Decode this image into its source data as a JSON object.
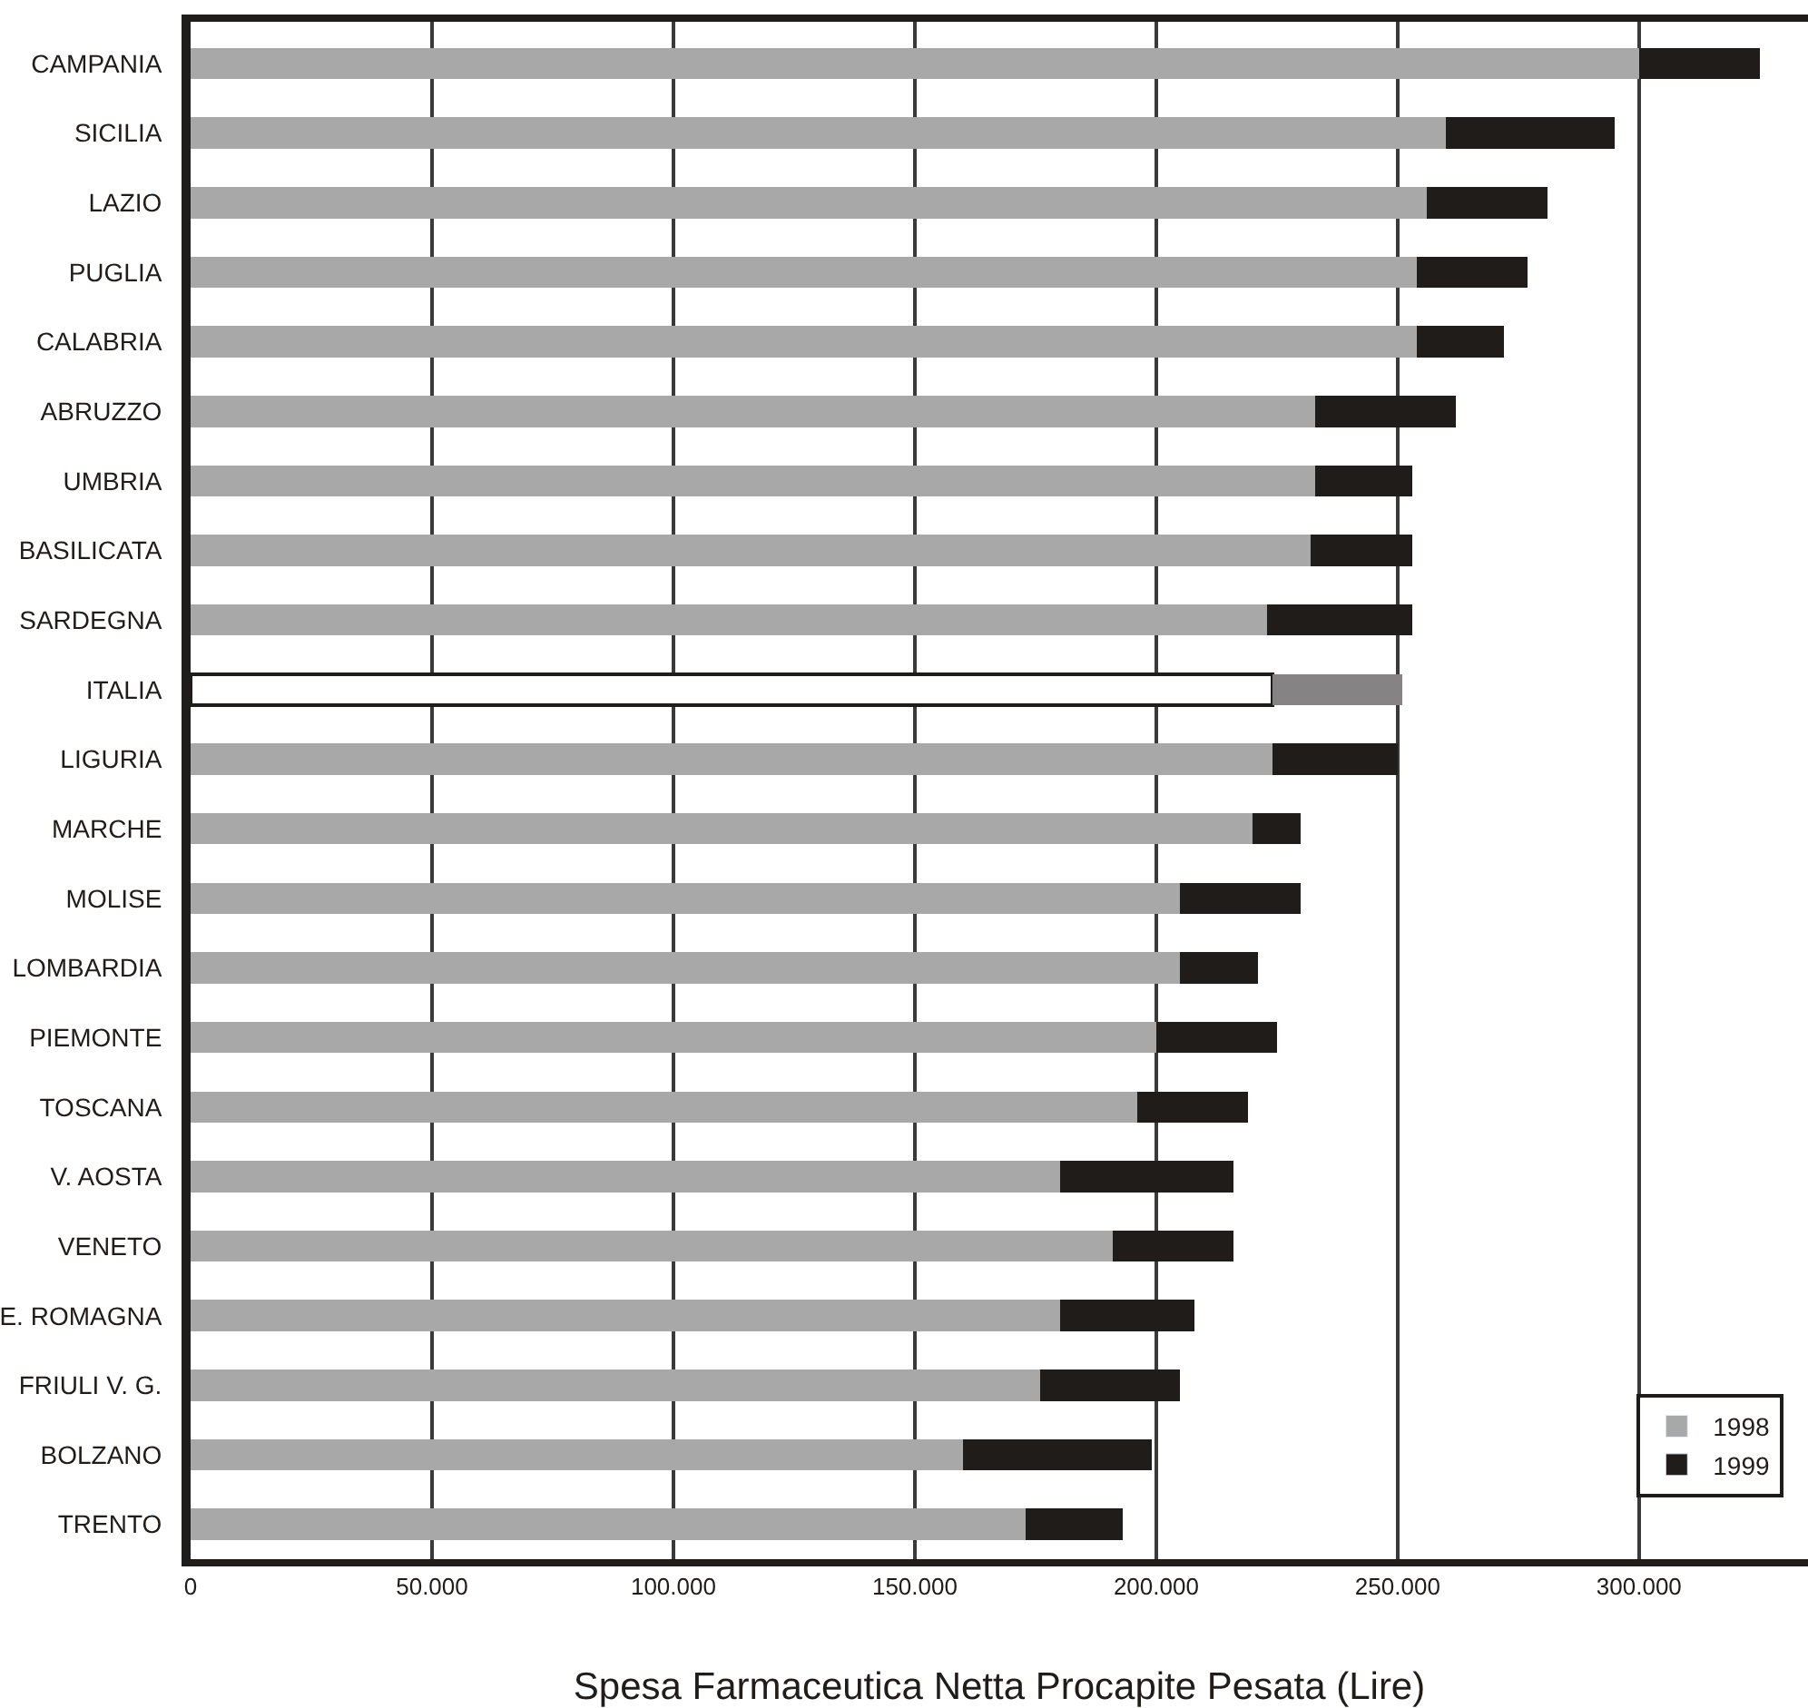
{
  "chart_data": {
    "type": "bar",
    "orientation": "horizontal",
    "stacked": true,
    "xlabel": "Spesa Farmaceutica Netta Procapite Pesata (Lire)",
    "categories": [
      "CAMPANIA",
      "SICILIA",
      "LAZIO",
      "PUGLIA",
      "CALABRIA",
      "ABRUZZO",
      "UMBRIA",
      "BASILICATA",
      "SARDEGNA",
      "ITALIA",
      "LIGURIA",
      "MARCHE",
      "MOLISE",
      "LOMBARDIA",
      "PIEMONTE",
      "TOSCANA",
      "V. AOSTA",
      "VENETO",
      "E. ROMAGNA",
      "FRIULI V. G.",
      "BOLZANO",
      "TRENTO"
    ],
    "series": [
      {
        "name": "1998",
        "color": "#a8a8a8",
        "colors": [
          "#a8a8a8",
          "#a8a8a8",
          "#a8a8a8",
          "#a8a8a8",
          "#a8a8a8",
          "#a8a8a8",
          "#a8a8a8",
          "#a8a8a8",
          "#a8a8a8",
          "#ffffff",
          "#a8a8a8",
          "#a8a8a8",
          "#a8a8a8",
          "#a8a8a8",
          "#a8a8a8",
          "#a8a8a8",
          "#a8a8a8",
          "#a8a8a8",
          "#a8a8a8",
          "#a8a8a8",
          "#a8a8a8",
          "#a8a8a8"
        ],
        "values": [
          300000,
          260000,
          256000,
          254000,
          254000,
          233000,
          233000,
          232000,
          223000,
          224000,
          224000,
          220000,
          205000,
          205000,
          200000,
          196000,
          180000,
          191000,
          180000,
          176000,
          160000,
          173000
        ]
      },
      {
        "name": "1999",
        "color": "#201c1a",
        "colors": [
          "#201c1a",
          "#201c1a",
          "#201c1a",
          "#201c1a",
          "#201c1a",
          "#201c1a",
          "#201c1a",
          "#201c1a",
          "#201c1a",
          "#858383",
          "#201c1a",
          "#201c1a",
          "#201c1a",
          "#201c1a",
          "#201c1a",
          "#201c1a",
          "#201c1a",
          "#201c1a",
          "#201c1a",
          "#201c1a",
          "#201c1a",
          "#201c1a"
        ],
        "values": [
          25000,
          35000,
          25000,
          23000,
          18000,
          29000,
          20000,
          21000,
          30000,
          27000,
          26000,
          10000,
          25000,
          16000,
          25000,
          23000,
          36000,
          25000,
          28000,
          29000,
          39000,
          20000
        ]
      }
    ],
    "xlim": [
      0,
      335000
    ],
    "xticks": [
      0,
      {
        "value": 50000,
        "label": "50.000"
      },
      {
        "value": 100000,
        "label": "100.000"
      },
      {
        "value": 150000,
        "label": "150.000"
      },
      {
        "value": 200000,
        "label": "200.000"
      },
      {
        "value": 250000,
        "label": "250.000"
      },
      {
        "value": 300000,
        "label": "300.000"
      }
    ],
    "grid": "x",
    "legend": "bottom right"
  }
}
